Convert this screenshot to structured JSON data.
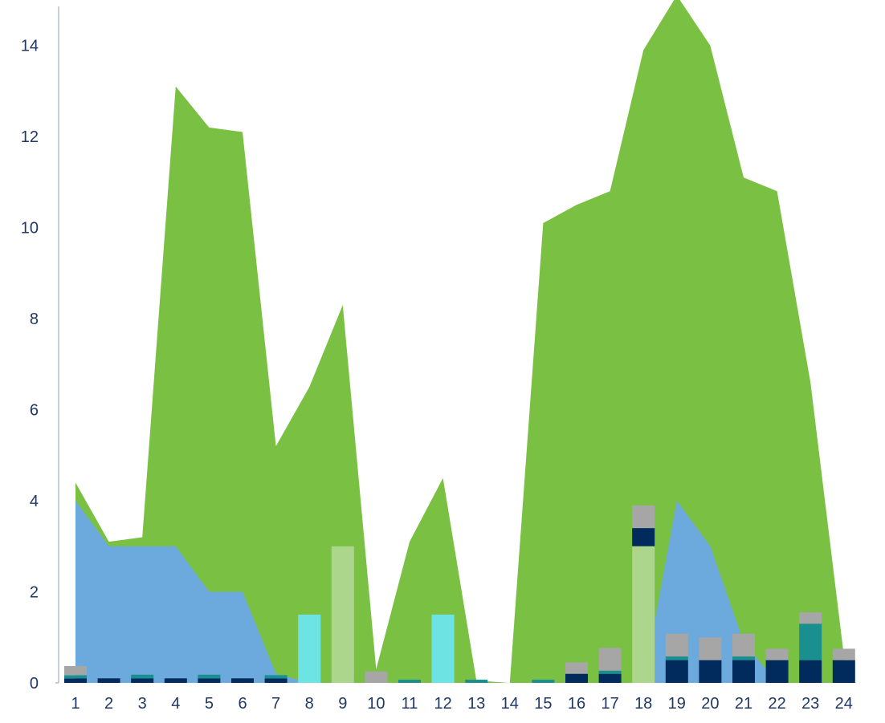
{
  "chart_data": {
    "type": "area",
    "title": "",
    "xlabel": "",
    "ylabel": "",
    "categories": [
      "1",
      "2",
      "3",
      "4",
      "5",
      "6",
      "7",
      "8",
      "9",
      "10",
      "11",
      "12",
      "13",
      "14",
      "15",
      "16",
      "17",
      "18",
      "19",
      "20",
      "21",
      "22",
      "23",
      "24"
    ],
    "ylim": [
      0,
      15
    ],
    "y_ticks": [
      0,
      2,
      4,
      6,
      8,
      10,
      12,
      14
    ],
    "grid": false,
    "legend": "none",
    "area_series": [
      {
        "color": "#7ac143",
        "values": [
          4.4,
          3.1,
          3.2,
          13.1,
          12.2,
          12.1,
          5.2,
          6.5,
          8.3,
          0.3,
          3.1,
          4.5,
          0.05,
          0.0,
          10.1,
          10.5,
          10.8,
          13.9,
          15.1,
          14.0,
          11.1,
          10.8,
          6.6,
          0.6
        ]
      },
      {
        "color": "#6ca9dd",
        "values": [
          4.0,
          3.0,
          3.0,
          3.0,
          2.0,
          2.0,
          0.2,
          0.0,
          0.0,
          0.0,
          0.0,
          0.0,
          0.0,
          0.0,
          0.0,
          0.0,
          0.0,
          0.0,
          4.0,
          3.0,
          0.9,
          0.0,
          0.0,
          0.0
        ]
      }
    ],
    "bar_series": [
      {
        "color": "#002b5c",
        "values": [
          0.1,
          0.1,
          0.1,
          0.1,
          0.1,
          0.1,
          0.1,
          0,
          0,
          0,
          0,
          0,
          0,
          0,
          0,
          0.2,
          0.2,
          0.4,
          0.5,
          0.5,
          0.5,
          0.5,
          0.5,
          0.5
        ],
        "offset": [
          0,
          0,
          0,
          0,
          0,
          0,
          0,
          0,
          0,
          0,
          0,
          0,
          0,
          0,
          0,
          0,
          0,
          3.0,
          0,
          0,
          0,
          0,
          0,
          0
        ]
      },
      {
        "color": "#1a8f8f",
        "values": [
          0.07,
          0,
          0.08,
          0,
          0.08,
          0,
          0.07,
          0,
          0.07,
          0,
          0.07,
          0,
          0.07,
          0,
          0.07,
          0,
          0.07,
          0,
          0.08,
          0,
          0.08,
          0,
          0.8,
          0
        ]
      },
      {
        "color": "#a6a6a6",
        "values": [
          0.2,
          0,
          0,
          0,
          0,
          0,
          0,
          0,
          0.25,
          0.25,
          0,
          0,
          0,
          0,
          0,
          0.25,
          0.5,
          0.5,
          0.5,
          0.5,
          0.5,
          0.25,
          0.25,
          0.25
        ]
      },
      {
        "color": "#6ee3e3",
        "values": [
          0,
          0,
          0,
          0,
          0,
          0,
          0,
          1.5,
          0,
          0,
          0,
          1.5,
          0,
          0,
          0,
          0,
          0,
          0,
          0,
          0,
          0,
          0,
          0,
          0
        ]
      },
      {
        "color": "#acd68c",
        "values": [
          0,
          0,
          0,
          0,
          0,
          0,
          0,
          0,
          3.0,
          0,
          0,
          0,
          0,
          0,
          0,
          0,
          0,
          3.0,
          0,
          0,
          0,
          0,
          0,
          0
        ]
      }
    ]
  }
}
